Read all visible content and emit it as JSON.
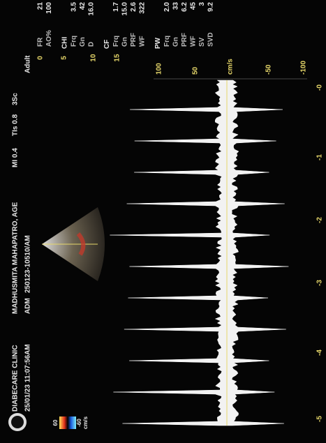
{
  "header": {
    "clinic": "DIABECARE CLINIC",
    "datetime": "25/01/23 11:07:56AM",
    "patient": "MADHUSMITA MAHAPATRO, AGE",
    "adm": "ADM",
    "exam_id": "250123-10510/AM",
    "mi": "MI 0.4",
    "tis": "TIs 0.8",
    "probe": "3Sc",
    "preset": "Adult"
  },
  "colorbar": {
    "max": "60",
    "min": "-60",
    "unit": "cm/s"
  },
  "velocity_scale": [
    "100",
    "50",
    "cm/s",
    "-50",
    "-100"
  ],
  "time_scale": [
    "-5",
    "-4",
    "-3",
    "-2",
    "-1",
    "-0"
  ],
  "depth_marks": [
    "0",
    "5",
    "10",
    "15"
  ],
  "params": [
    {
      "title": "",
      "rows": [
        [
          "FR",
          "21"
        ],
        [
          "AO%",
          "100"
        ]
      ]
    },
    {
      "title": "CHI",
      "rows": [
        [
          "Frq",
          "3.5"
        ],
        [
          "Gn",
          "42"
        ],
        [
          "D",
          "16.0"
        ]
      ]
    },
    {
      "title": "CF",
      "rows": [
        [
          "Frq",
          "1.7"
        ],
        [
          "Gn",
          "15.0"
        ],
        [
          "PRF",
          "2.6"
        ],
        [
          "WF",
          "322"
        ]
      ]
    },
    {
      "title": "PW",
      "rows": [
        [
          "Frq",
          "2.0"
        ],
        [
          "Gn",
          "33"
        ],
        [
          "PRF",
          "6.2"
        ],
        [
          "WF",
          "45"
        ],
        [
          "SV",
          "3"
        ],
        [
          "SVD",
          "9.2"
        ]
      ]
    }
  ]
}
